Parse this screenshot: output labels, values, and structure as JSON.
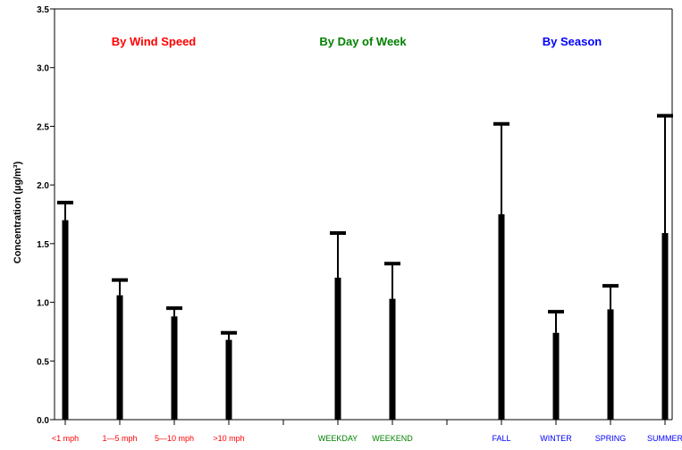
{
  "chart_data": {
    "type": "bar",
    "ylabel": "Concentration (µg/m³)",
    "ylim": [
      0,
      3.5
    ],
    "yticks": [
      "0.0",
      "0.5",
      "1.0",
      "1.5",
      "2.0",
      "2.5",
      "3.0",
      "3.5"
    ],
    "grid": false,
    "groups": [
      {
        "title": "By Wind Speed",
        "color": "#ff0000",
        "categories": [
          "<1 mph",
          "1—5 mph",
          "5—10 mph",
          ">10 mph"
        ],
        "values": [
          1.7,
          1.06,
          0.88,
          0.68
        ],
        "upper": [
          1.85,
          1.19,
          0.95,
          0.74
        ]
      },
      {
        "title": "By Day of Week",
        "color": "#008000",
        "categories": [
          "WEEKDAY",
          "WEEKEND"
        ],
        "values": [
          1.21,
          1.03
        ],
        "upper": [
          1.59,
          1.33
        ]
      },
      {
        "title": "By Season",
        "color": "#0000ff",
        "categories": [
          "FALL",
          "WINTER",
          "SPRING",
          "SUMMER"
        ],
        "values": [
          1.75,
          0.74,
          0.94,
          1.59
        ],
        "upper": [
          2.52,
          0.92,
          1.14,
          2.59
        ]
      }
    ]
  }
}
